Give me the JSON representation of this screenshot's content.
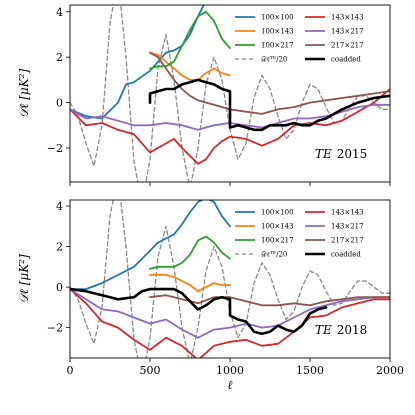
{
  "chart_data": [
    {
      "type": "line",
      "annotation_field": "TE",
      "annotation_year": "2015",
      "xlim": [
        0,
        2000
      ],
      "ylim": [
        -3.5,
        4.3
      ],
      "xticks": [
        0,
        500,
        1000,
        1500,
        2000
      ],
      "yticks": [
        -2,
        0,
        2,
        4
      ],
      "ylabel": "𝒟ℓ [μK²]",
      "xlabel": "",
      "show_xtick_labels": false,
      "legend_position": "top-right",
      "reference_curve": {
        "name": "𝒟ℓᵀᴱ/20",
        "color": "#888888",
        "x": [
          0,
          50,
          100,
          150,
          200,
          250,
          300,
          350,
          400,
          450,
          500,
          550,
          600,
          650,
          700,
          750,
          800,
          850,
          900,
          950,
          1000,
          1050,
          1100,
          1150,
          1200,
          1250,
          1300,
          1350,
          1400,
          1450,
          1500,
          1550,
          1600,
          1650,
          1700,
          1750,
          1800,
          1850,
          1900,
          1950,
          2000
        ],
        "y": [
          0.0,
          -0.6,
          -1.8,
          -2.8,
          -1.0,
          3.5,
          5.5,
          2.0,
          -2.6,
          -4.5,
          -2.5,
          1.5,
          3.0,
          1.0,
          -2.0,
          -3.8,
          -2.0,
          0.8,
          2.0,
          1.0,
          -1.2,
          -2.5,
          -1.8,
          0.2,
          1.2,
          0.6,
          -0.6,
          -1.6,
          -1.2,
          0.0,
          0.8,
          0.6,
          -0.2,
          -0.9,
          -0.8,
          -0.2,
          0.3,
          0.3,
          0.0,
          -0.3,
          -0.3
        ]
      },
      "series": [
        {
          "name": "100×100",
          "color": "#1f77b4",
          "width": 1.8,
          "x": [
            0,
            100,
            200,
            300,
            350,
            400,
            500,
            600,
            650,
            700,
            750,
            800,
            850,
            900
          ],
          "y": [
            -0.3,
            -0.6,
            -0.7,
            0.0,
            0.8,
            0.9,
            1.4,
            2.2,
            2.3,
            2.5,
            3.0,
            3.8,
            4.5,
            5.0
          ]
        },
        {
          "name": "100×143",
          "color": "#ff7f0e",
          "width": 1.8,
          "x": [
            500,
            550,
            600,
            650,
            700,
            750,
            800,
            850,
            900,
            950,
            1000
          ],
          "y": [
            2.2,
            2.1,
            1.8,
            1.5,
            1.2,
            1.0,
            1.0,
            1.3,
            1.5,
            1.3,
            1.2
          ]
        },
        {
          "name": "100×217",
          "color": "#2ca02c",
          "width": 1.8,
          "x": [
            500,
            550,
            600,
            650,
            700,
            750,
            800,
            850,
            900,
            950,
            1000
          ],
          "y": [
            1.5,
            1.6,
            1.6,
            1.8,
            2.5,
            3.2,
            3.8,
            4.0,
            3.6,
            2.8,
            2.4
          ]
        },
        {
          "name": "143×143",
          "color": "#d62728",
          "width": 1.8,
          "x": [
            0,
            100,
            200,
            300,
            400,
            500,
            600,
            650,
            700,
            800,
            850,
            900,
            950,
            1000,
            1100,
            1200,
            1300,
            1400,
            1500,
            1600,
            1700,
            1800,
            1900,
            2000
          ],
          "y": [
            -0.3,
            -1.0,
            -0.9,
            -1.2,
            -1.4,
            -2.2,
            -1.8,
            -1.6,
            -2.0,
            -2.7,
            -2.5,
            -2.0,
            -1.7,
            -1.5,
            -1.6,
            -1.9,
            -1.6,
            -1.0,
            -0.9,
            -1.0,
            -0.8,
            -0.4,
            0.0,
            0.6
          ]
        },
        {
          "name": "143×217",
          "color": "#9467bd",
          "width": 1.8,
          "x": [
            0,
            100,
            200,
            300,
            400,
            500,
            600,
            700,
            800,
            900,
            1000,
            1100,
            1200,
            1300,
            1400,
            1500,
            1600,
            1700,
            1800,
            1900,
            2000
          ],
          "y": [
            -0.3,
            -0.7,
            -0.6,
            -0.8,
            -1.0,
            -1.0,
            -0.9,
            -1.0,
            -1.2,
            -1.0,
            -0.9,
            -1.0,
            -1.1,
            -0.9,
            -0.7,
            -0.7,
            -0.6,
            -0.4,
            -0.2,
            -0.1,
            -0.1
          ]
        },
        {
          "name": "217×217",
          "color": "#8c564b",
          "width": 1.8,
          "x": [
            500,
            550,
            600,
            650,
            700,
            750,
            800,
            850,
            900,
            1000,
            1100,
            1200,
            1300,
            1400,
            1500,
            1600,
            1700,
            1800,
            1900,
            2000
          ],
          "y": [
            2.2,
            2.0,
            1.5,
            1.0,
            0.6,
            0.3,
            0.1,
            0.0,
            -0.1,
            -0.3,
            -0.4,
            -0.5,
            -0.3,
            -0.2,
            0.0,
            0.1,
            0.2,
            0.3,
            0.4,
            0.5
          ]
        },
        {
          "name": "coadded",
          "color": "#000000",
          "width": 2.6,
          "x": [
            500,
            500,
            550,
            600,
            650,
            700,
            750,
            800,
            850,
            900,
            950,
            1000,
            1000,
            1050,
            1100,
            1150,
            1200,
            1250,
            1300,
            1350,
            1400,
            1450,
            1500,
            1550,
            1600,
            1700,
            1800,
            1900,
            2000
          ],
          "y": [
            0.0,
            0.4,
            0.5,
            0.6,
            0.6,
            0.8,
            0.9,
            1.0,
            0.9,
            0.8,
            0.6,
            0.5,
            -1.1,
            -1.0,
            -1.1,
            -1.2,
            -1.2,
            -1.0,
            -1.0,
            -1.0,
            -0.9,
            -1.0,
            -1.0,
            -0.8,
            -0.7,
            -0.3,
            0.0,
            0.2,
            0.3
          ]
        }
      ]
    },
    {
      "type": "line",
      "annotation_field": "TE",
      "annotation_year": "2018",
      "xlim": [
        0,
        2000
      ],
      "ylim": [
        -3.5,
        4.3
      ],
      "xticks": [
        0,
        500,
        1000,
        1500,
        2000
      ],
      "yticks": [
        -2,
        0,
        2,
        4
      ],
      "ylabel": "𝒟ℓ [μK²]",
      "xlabel": "ℓ",
      "show_xtick_labels": true,
      "legend_position": "top-right",
      "reference_curve": {
        "name": "𝒟ℓᵀᴱ/20",
        "color": "#888888",
        "x": [
          0,
          50,
          100,
          150,
          200,
          250,
          300,
          350,
          400,
          450,
          500,
          550,
          600,
          650,
          700,
          750,
          800,
          850,
          900,
          950,
          1000,
          1050,
          1100,
          1150,
          1200,
          1250,
          1300,
          1350,
          1400,
          1450,
          1500,
          1550,
          1600,
          1650,
          1700,
          1750,
          1800,
          1850,
          1900,
          1950,
          2000
        ],
        "y": [
          0.0,
          -0.6,
          -1.8,
          -2.8,
          -1.0,
          3.5,
          5.5,
          2.0,
          -2.6,
          -4.5,
          -2.5,
          1.5,
          3.0,
          1.0,
          -2.0,
          -3.8,
          -2.0,
          0.8,
          2.0,
          1.0,
          -1.2,
          -2.5,
          -1.8,
          0.2,
          1.2,
          0.6,
          -0.6,
          -1.6,
          -1.2,
          0.0,
          0.8,
          0.6,
          -0.2,
          -0.9,
          -0.8,
          -0.2,
          0.3,
          0.3,
          0.0,
          -0.3,
          -0.3
        ]
      },
      "series": [
        {
          "name": "100×100",
          "color": "#1f77b4",
          "width": 1.8,
          "x": [
            0,
            100,
            200,
            300,
            350,
            400,
            450,
            500,
            550,
            600,
            650,
            700,
            750,
            800,
            850,
            900,
            950,
            1000
          ],
          "y": [
            -0.1,
            -0.1,
            0.2,
            0.6,
            0.8,
            1.0,
            1.4,
            1.8,
            2.2,
            2.4,
            2.6,
            3.1,
            3.7,
            4.2,
            4.4,
            4.2,
            3.5,
            3.0
          ]
        },
        {
          "name": "100×143",
          "color": "#ff7f0e",
          "width": 1.8,
          "x": [
            500,
            550,
            600,
            650,
            700,
            750,
            800,
            850,
            900,
            950,
            1000
          ],
          "y": [
            0.6,
            0.6,
            0.6,
            0.5,
            0.3,
            0.1,
            -0.2,
            0.0,
            0.2,
            0.1,
            0.1
          ]
        },
        {
          "name": "100×217",
          "color": "#2ca02c",
          "width": 1.8,
          "x": [
            500,
            550,
            600,
            650,
            700,
            750,
            800,
            850,
            900,
            950,
            1000
          ],
          "y": [
            0.9,
            1.0,
            1.0,
            1.0,
            1.2,
            1.6,
            2.3,
            2.5,
            2.2,
            1.7,
            1.4
          ]
        },
        {
          "name": "143×143",
          "color": "#d62728",
          "width": 1.8,
          "x": [
            0,
            100,
            200,
            300,
            400,
            500,
            600,
            700,
            800,
            900,
            1000,
            1100,
            1200,
            1300,
            1400,
            1500,
            1600,
            1700,
            1800,
            1900,
            2000
          ],
          "y": [
            -0.1,
            -0.8,
            -1.7,
            -2.0,
            -2.6,
            -3.1,
            -2.5,
            -2.9,
            -3.6,
            -2.9,
            -2.7,
            -2.6,
            -2.9,
            -2.8,
            -2.2,
            -1.5,
            -1.4,
            -1.0,
            -0.8,
            -0.6,
            -0.6
          ]
        },
        {
          "name": "143×217",
          "color": "#9467bd",
          "width": 1.8,
          "x": [
            0,
            100,
            200,
            300,
            400,
            500,
            600,
            700,
            800,
            900,
            1000,
            1100,
            1200,
            1300,
            1400,
            1500,
            1600,
            1700,
            1800,
            1900,
            2000
          ],
          "y": [
            -0.1,
            -0.6,
            -1.1,
            -1.2,
            -1.5,
            -1.8,
            -1.6,
            -2.1,
            -2.5,
            -2.1,
            -2.0,
            -1.8,
            -2.0,
            -1.9,
            -1.5,
            -1.1,
            -0.9,
            -0.7,
            -0.6,
            -0.5,
            -0.5
          ]
        },
        {
          "name": "217×217",
          "color": "#8c564b",
          "width": 1.8,
          "x": [
            500,
            600,
            700,
            800,
            900,
            1000,
            1100,
            1200,
            1300,
            1400,
            1500,
            1600,
            1700,
            1800,
            1900,
            2000
          ],
          "y": [
            -0.5,
            -0.4,
            -0.6,
            -0.8,
            -0.5,
            -0.5,
            -0.7,
            -0.9,
            -0.9,
            -0.8,
            -0.9,
            -0.7,
            -0.6,
            -0.5,
            -0.5,
            -0.5
          ]
        },
        {
          "name": "coadded",
          "color": "#000000",
          "width": 2.6,
          "x": [
            0,
            100,
            200,
            300,
            400,
            450,
            500,
            550,
            600,
            650,
            700,
            750,
            800,
            850,
            900,
            950,
            1000,
            1000,
            1050,
            1100,
            1150,
            1200,
            1250,
            1300,
            1350,
            1400,
            1450,
            1500,
            1550,
            1600
          ],
          "y": [
            -0.1,
            -0.2,
            -0.4,
            -0.6,
            -0.5,
            -0.2,
            -0.1,
            -0.1,
            -0.1,
            -0.1,
            -0.3,
            -0.7,
            -1.1,
            -0.9,
            -0.6,
            -0.5,
            -0.6,
            -1.4,
            -1.6,
            -1.7,
            -2.2,
            -2.3,
            -2.2,
            -1.9,
            -2.1,
            -2.2,
            -1.9,
            -1.3,
            -1.1,
            -1.0
          ]
        }
      ]
    }
  ]
}
